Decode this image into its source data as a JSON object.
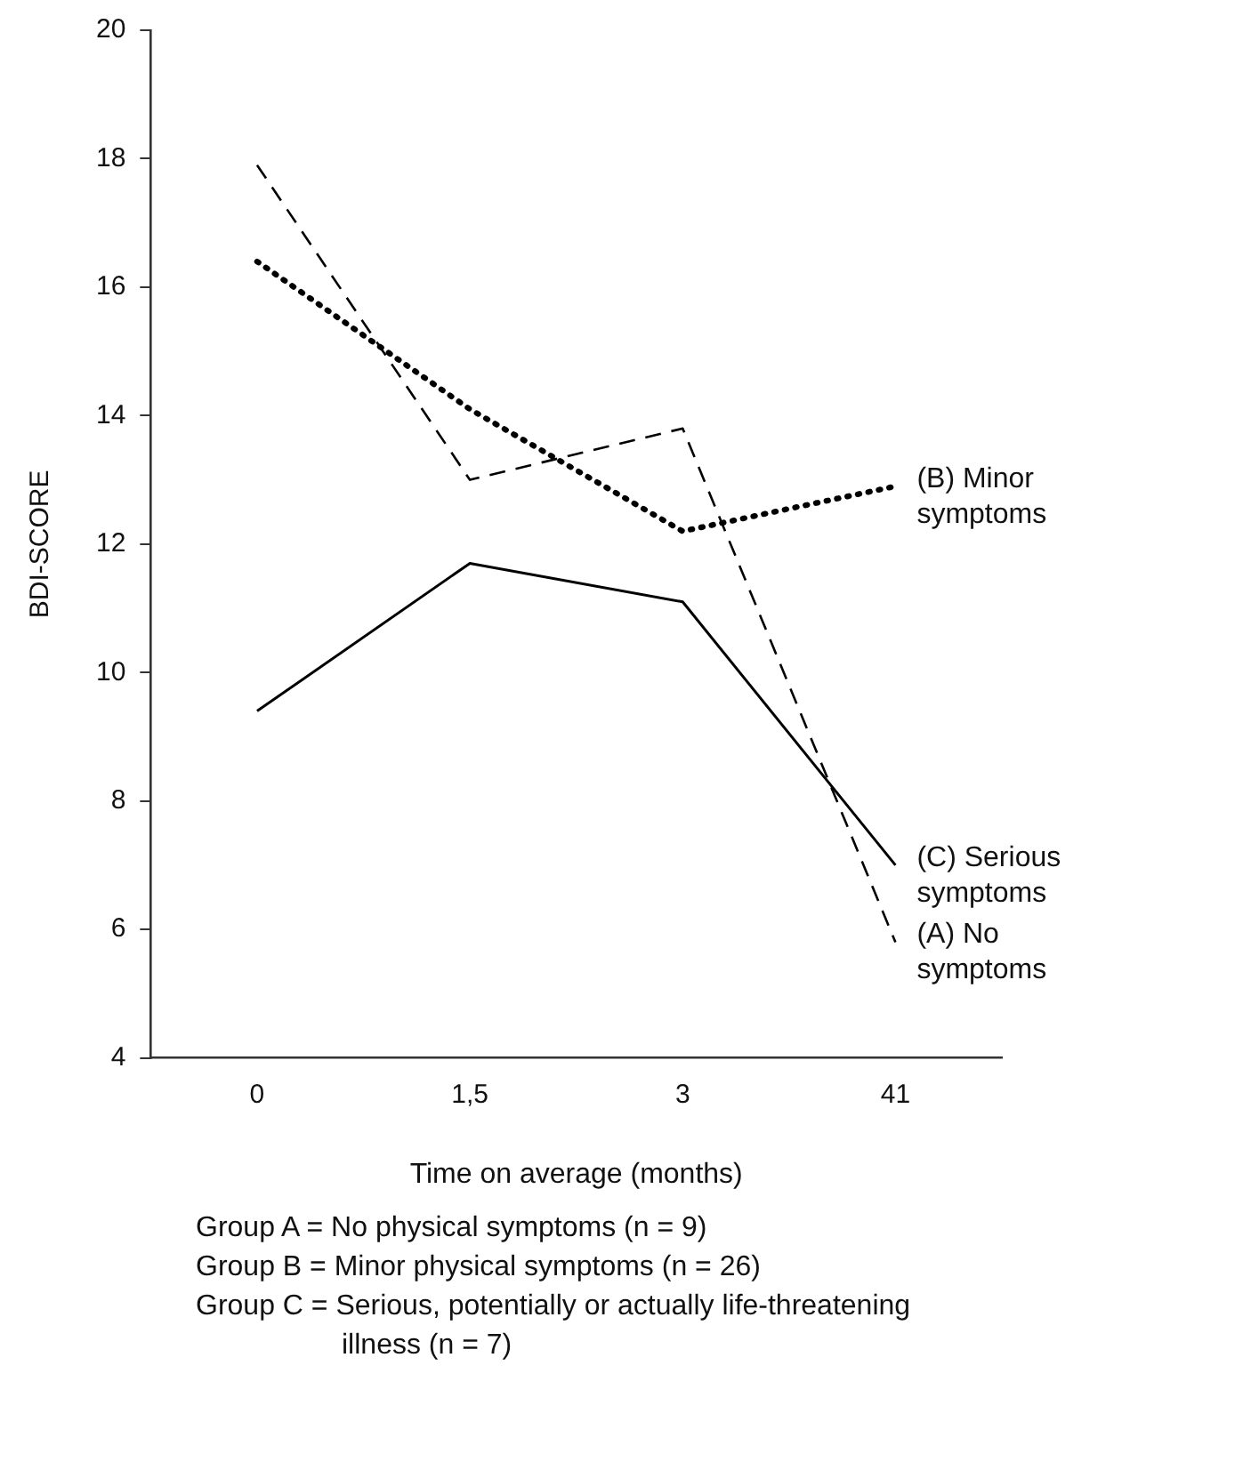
{
  "chart_data": {
    "type": "line",
    "xlabel": "Time on average (months)",
    "ylabel": "BDI-SCORE",
    "categories": [
      "0",
      "1,5",
      "3",
      "41"
    ],
    "series": [
      {
        "name": "(A) No symptoms",
        "color": "#000000",
        "line_style": "dashed",
        "values": [
          17.9,
          13.0,
          13.8,
          5.8
        ]
      },
      {
        "name": "(B) Minor symptoms",
        "color": "#000000",
        "line_style": "dotted",
        "values": [
          16.4,
          14.1,
          12.2,
          12.9
        ]
      },
      {
        "name": "(C) Serious symptoms",
        "color": "#000000",
        "line_style": "solid",
        "values": [
          9.4,
          11.7,
          11.1,
          7.0
        ]
      }
    ],
    "ylim": [
      4,
      20
    ],
    "yticks": [
      4,
      6,
      8,
      10,
      12,
      14,
      16,
      18,
      20
    ],
    "grid": false,
    "legend": false,
    "marker": "none",
    "annotations": [
      "Group A =  No physical symptoms  (n = 9)",
      "Group B =  Minor physical symptoms (n = 26)",
      "Group C =  Serious, potentially or actually life-threatening illness (n = 7)"
    ]
  }
}
